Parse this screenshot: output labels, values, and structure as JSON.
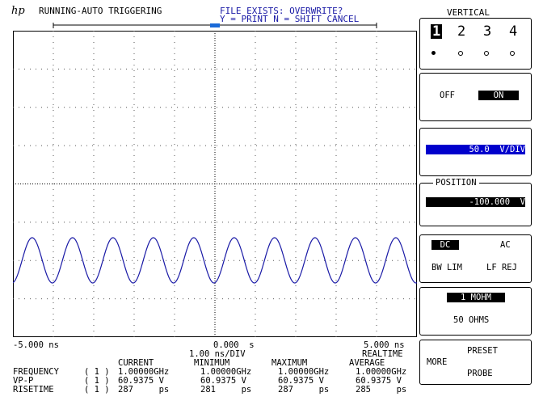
{
  "header": {
    "logo": "hp",
    "status": "RUNNING-AUTO TRIGGERING",
    "prompt_line1": "FILE EXISTS: OVERWRITE?",
    "prompt_line2": "Y = PRINT N = SHIFT CANCEL"
  },
  "scope": {
    "trace_color": "#1a1aa6",
    "grid_color": "#555555",
    "cycles_shown": 10,
    "time_left": "-5.000 ns",
    "time_center": "0.000  s",
    "time_right": "5.000 ns",
    "timebase": "1.00 ns/DIV",
    "mode": "REALTIME"
  },
  "measurements": {
    "headers": [
      "CURRENT",
      "MINIMUM",
      "MAXIMUM",
      "AVERAGE"
    ],
    "rows": [
      {
        "label": "FREQUENCY",
        "channel": "( 1 )",
        "values": [
          "1.00000GHz",
          "1.00000GHz",
          "1.00000GHz",
          "1.00000GHz"
        ]
      },
      {
        "label": "VP-P",
        "channel": "( 1 )",
        "values": [
          "60.9375 V",
          "60.9375 V",
          "60.9375 V",
          "60.9375 V"
        ]
      },
      {
        "label": "RISETIME",
        "channel": "( 1 )",
        "values": [
          "287     ps",
          "281     ps",
          "287     ps",
          "285     ps"
        ]
      }
    ]
  },
  "panel": {
    "title": "VERTICAL",
    "channels": [
      "1",
      "2",
      "3",
      "4"
    ],
    "selected_channel": "1",
    "off_label": "OFF",
    "on_label": "ON",
    "scale_value": "50.0  V/DIV",
    "position_label": "POSITION",
    "position_value": "-100.000  V",
    "coupling_dc": "DC",
    "coupling_ac": "AC",
    "bw_lim": "BW LIM",
    "lf_rej": "LF REJ",
    "impedance_1m": "1 MOHM",
    "impedance_50": "50 OHMS",
    "more": "MORE",
    "preset": "PRESET",
    "probe": "PROBE"
  }
}
